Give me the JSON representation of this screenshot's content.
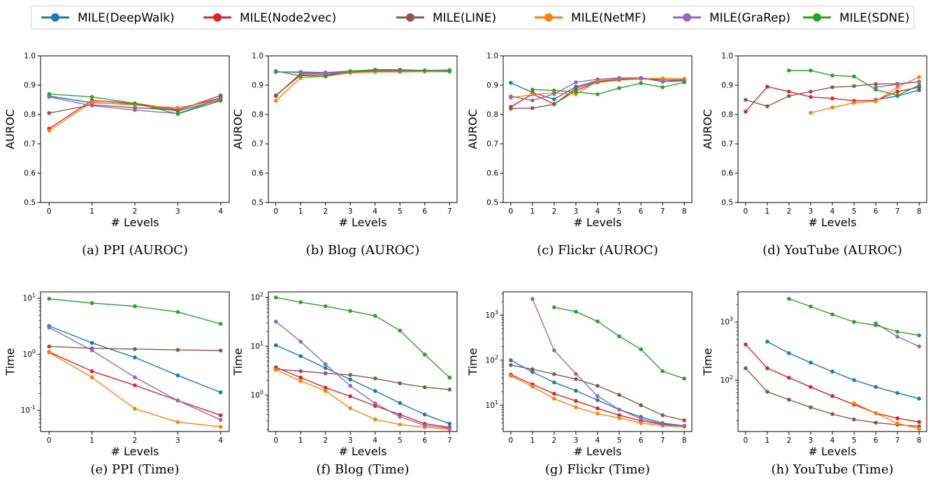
{
  "legend": {
    "entries": [
      {
        "name": "MILE(DeepWalk)",
        "color": "#1f77b4"
      },
      {
        "name": "MILE(Node2vec)",
        "color": "#d62728"
      },
      {
        "name": "MILE(LINE)",
        "color": "#8c564b"
      },
      {
        "name": "MILE(NetMF)",
        "color": "#ff7f0e"
      },
      {
        "name": "MILE(GraRep)",
        "color": "#9467bd"
      },
      {
        "name": "MILE(SDNE)",
        "color": "#2ca02c"
      }
    ]
  },
  "chart_data": [
    {
      "id": "a",
      "type": "line",
      "caption": "(a) PPI (AUROC)",
      "xlabel": "# Levels",
      "ylabel": "AUROC",
      "x": [
        0,
        1,
        2,
        3,
        4
      ],
      "xlim": [
        -0.2,
        4.2
      ],
      "ylim": [
        0.5,
        1.0
      ],
      "yscale": "linear",
      "yticks": [
        0.5,
        0.6,
        0.7,
        0.8,
        0.9,
        1.0
      ],
      "ytick_labels": [
        "0.5",
        "0.6",
        "0.7",
        "0.8",
        "0.9",
        "1.0"
      ],
      "grid": false,
      "series": [
        {
          "name": "MILE(DeepWalk)",
          "values": [
            0.863,
            0.84,
            0.835,
            0.812,
            0.85
          ]
        },
        {
          "name": "MILE(Node2vec)",
          "values": [
            0.752,
            0.848,
            0.838,
            0.817,
            0.857
          ]
        },
        {
          "name": "MILE(LINE)",
          "values": [
            0.805,
            0.833,
            0.823,
            0.815,
            0.865
          ]
        },
        {
          "name": "MILE(NetMF)",
          "values": [
            0.745,
            0.842,
            0.832,
            0.823,
            0.85
          ]
        },
        {
          "name": "MILE(GraRep)",
          "values": [
            0.86,
            0.83,
            0.815,
            0.803,
            0.853
          ]
        },
        {
          "name": "MILE(SDNE)",
          "values": [
            0.87,
            0.86,
            0.838,
            0.802,
            0.847
          ]
        }
      ]
    },
    {
      "id": "b",
      "type": "line",
      "caption": "(b) Blog (AUROC)",
      "xlabel": "# Levels",
      "ylabel": "AUROC",
      "x": [
        0,
        1,
        2,
        3,
        4,
        5,
        6,
        7
      ],
      "xlim": [
        -0.3,
        7.3
      ],
      "ylim": [
        0.5,
        1.0
      ],
      "yscale": "linear",
      "yticks": [
        0.5,
        0.6,
        0.7,
        0.8,
        0.9,
        1.0
      ],
      "ytick_labels": [
        "0.5",
        "0.6",
        "0.7",
        "0.8",
        "0.9",
        "1.0"
      ],
      "grid": false,
      "series": [
        {
          "name": "MILE(DeepWalk)",
          "values": [
            0.945,
            0.945,
            0.943,
            0.948,
            0.952,
            0.952,
            0.95,
            0.95
          ]
        },
        {
          "name": "MILE(Node2vec)",
          "values": [
            0.865,
            0.935,
            0.935,
            0.945,
            0.948,
            0.948,
            0.948,
            0.948
          ]
        },
        {
          "name": "MILE(LINE)",
          "values": [
            0.863,
            0.94,
            0.94,
            0.945,
            0.948,
            0.948,
            0.948,
            0.948
          ]
        },
        {
          "name": "MILE(NetMF)",
          "values": [
            0.847,
            0.925,
            0.93,
            0.942,
            0.945,
            0.945,
            0.946,
            0.946
          ]
        },
        {
          "name": "MILE(GraRep)",
          "values": [
            0.945,
            0.943,
            0.941,
            0.947,
            0.952,
            0.95,
            0.95,
            0.952
          ]
        },
        {
          "name": "MILE(SDNE)",
          "values": [
            0.948,
            0.932,
            0.93,
            0.948,
            0.953,
            0.953,
            0.95,
            0.948
          ]
        }
      ]
    },
    {
      "id": "c",
      "type": "line",
      "caption": "(c) Flickr (AUROC)",
      "xlabel": "# Levels",
      "ylabel": "AUROC",
      "x": [
        0,
        1,
        2,
        3,
        4,
        5,
        6,
        7,
        8
      ],
      "xlim": [
        -0.35,
        8.35
      ],
      "ylim": [
        0.5,
        1.0
      ],
      "yscale": "linear",
      "yticks": [
        0.5,
        0.6,
        0.7,
        0.8,
        0.9,
        1.0
      ],
      "ytick_labels": [
        "0.5",
        "0.6",
        "0.7",
        "0.8",
        "0.9",
        "1.0"
      ],
      "grid": false,
      "series": [
        {
          "name": "MILE(DeepWalk)",
          "values": [
            0.908,
            0.875,
            0.852,
            0.895,
            0.915,
            0.922,
            0.925,
            0.912,
            0.915
          ]
        },
        {
          "name": "MILE(Node2vec)",
          "values": [
            0.826,
            0.87,
            0.836,
            0.882,
            0.91,
            0.918,
            0.922,
            0.918,
            0.918
          ]
        },
        {
          "name": "MILE(LINE)",
          "values": [
            0.82,
            0.822,
            0.835,
            0.89,
            0.912,
            0.92,
            0.925,
            0.918,
            0.915
          ]
        },
        {
          "name": "MILE(NetMF)",
          "values": [
            0.857,
            0.868,
            0.874,
            0.869,
            0.914,
            0.922,
            0.923,
            0.923,
            0.922
          ]
        },
        {
          "name": "MILE(GraRep)",
          "values": [
            0.862,
            0.848,
            0.87,
            0.91,
            0.92,
            0.925,
            0.925,
            0.912,
            0.915
          ]
        },
        {
          "name": "MILE(SDNE)",
          "values": [
            null,
            0.885,
            0.882,
            0.877,
            0.869,
            0.89,
            0.907,
            0.893,
            0.91
          ]
        }
      ]
    },
    {
      "id": "d",
      "type": "line",
      "caption": "(d) YouTube (AUROC)",
      "xlabel": "# Levels",
      "ylabel": "AUROC",
      "x": [
        0,
        1,
        2,
        3,
        4,
        5,
        6,
        7,
        8
      ],
      "xlim": [
        -0.35,
        8.35
      ],
      "ylim": [
        0.5,
        1.0
      ],
      "yscale": "linear",
      "yticks": [
        0.5,
        0.6,
        0.7,
        0.8,
        0.9,
        1.0
      ],
      "ytick_labels": [
        "0.5",
        "0.6",
        "0.7",
        "0.8",
        "0.9",
        "1.0"
      ],
      "grid": false,
      "series": [
        {
          "name": "MILE(DeepWalk)",
          "values": [
            null,
            null,
            null,
            null,
            null,
            null,
            0.85,
            0.863,
            0.883
          ]
        },
        {
          "name": "MILE(Node2vec)",
          "values": [
            0.81,
            0.895,
            0.878,
            0.86,
            0.855,
            0.847,
            0.848,
            0.878,
            0.893
          ]
        },
        {
          "name": "MILE(LINE)",
          "values": [
            0.85,
            0.828,
            0.863,
            0.878,
            0.893,
            0.897,
            0.904,
            0.905,
            0.912
          ]
        },
        {
          "name": "MILE(NetMF)",
          "values": [
            null,
            null,
            null,
            0.806,
            0.824,
            0.84,
            0.845,
            0.893,
            0.928
          ]
        },
        {
          "name": "MILE(GraRep)",
          "values": [
            null,
            null,
            null,
            null,
            null,
            null,
            0.893,
            0.903,
            0.912
          ]
        },
        {
          "name": "MILE(SDNE)",
          "values": [
            null,
            null,
            0.95,
            0.95,
            0.933,
            0.93,
            0.885,
            0.865,
            0.9
          ]
        }
      ]
    },
    {
      "id": "e",
      "type": "line",
      "caption": "(e) PPI (Time)",
      "xlabel": "# Levels",
      "ylabel": "Time",
      "x": [
        0,
        1,
        2,
        3,
        4
      ],
      "xlim": [
        -0.2,
        4.2
      ],
      "ylim": [
        0.042,
        13
      ],
      "yscale": "log",
      "yticks": [
        0.1,
        1,
        10
      ],
      "ytick_labels": [
        "10^-1",
        "10^0",
        "10^1"
      ],
      "grid": false,
      "series": [
        {
          "name": "MILE(DeepWalk)",
          "values": [
            3.2,
            1.6,
            0.88,
            0.42,
            0.21
          ]
        },
        {
          "name": "MILE(Node2vec)",
          "values": [
            1.1,
            0.5,
            0.28,
            0.15,
            0.082
          ]
        },
        {
          "name": "MILE(LINE)",
          "values": [
            1.38,
            1.28,
            1.24,
            1.2,
            1.17
          ]
        },
        {
          "name": "MILE(NetMF)",
          "values": [
            1.08,
            0.39,
            0.107,
            0.062,
            0.051
          ]
        },
        {
          "name": "MILE(GraRep)",
          "values": [
            3.0,
            1.18,
            0.39,
            0.15,
            0.068
          ]
        },
        {
          "name": "MILE(SDNE)",
          "values": [
            9.8,
            8.2,
            7.2,
            5.7,
            3.5
          ]
        }
      ]
    },
    {
      "id": "f",
      "type": "line",
      "caption": "(f) Blog (Time)",
      "xlabel": "# Levels",
      "ylabel": "Time",
      "x": [
        0,
        1,
        2,
        3,
        4,
        5,
        6,
        7
      ],
      "xlim": [
        -0.3,
        7.3
      ],
      "ylim": [
        0.18,
        130
      ],
      "yscale": "log",
      "yticks": [
        1,
        10,
        100
      ],
      "ytick_labels": [
        "10^0",
        "10^1",
        "10^2"
      ],
      "grid": false,
      "series": [
        {
          "name": "MILE(DeepWalk)",
          "values": [
            10.5,
            6.3,
            3.6,
            2.1,
            1.22,
            0.69,
            0.4,
            0.26
          ]
        },
        {
          "name": "MILE(Node2vec)",
          "values": [
            3.7,
            2.3,
            1.42,
            0.95,
            0.6,
            0.4,
            0.26,
            0.22
          ]
        },
        {
          "name": "MILE(LINE)",
          "values": [
            3.4,
            3.1,
            2.8,
            2.6,
            2.2,
            1.75,
            1.45,
            1.3
          ]
        },
        {
          "name": "MILE(NetMF)",
          "values": [
            3.3,
            1.95,
            1.22,
            0.54,
            0.32,
            0.25,
            0.22,
            0.2
          ]
        },
        {
          "name": "MILE(GraRep)",
          "values": [
            32,
            12.5,
            4.3,
            1.55,
            0.68,
            0.36,
            0.24,
            0.21
          ]
        },
        {
          "name": "MILE(SDNE)",
          "values": [
            100,
            80,
            66,
            53,
            42,
            21,
            6.8,
            2.3
          ]
        }
      ]
    },
    {
      "id": "g",
      "type": "line",
      "caption": "(g) Flickr (Time)",
      "xlabel": "# Levels",
      "ylabel": "Time",
      "x": [
        0,
        1,
        2,
        3,
        4,
        5,
        6,
        7,
        8
      ],
      "xlim": [
        -0.35,
        8.35
      ],
      "ylim": [
        2.6,
        3300
      ],
      "yscale": "log",
      "yticks": [
        10,
        100,
        1000
      ],
      "ytick_labels": [
        "10^1",
        "10^2",
        "10^3"
      ],
      "grid": false,
      "series": [
        {
          "name": "MILE(DeepWalk)",
          "values": [
            100,
            55,
            32,
            21,
            13,
            8,
            5.5,
            4,
            3.5
          ]
        },
        {
          "name": "MILE(Node2vec)",
          "values": [
            48,
            29,
            18,
            12.5,
            8.5,
            6,
            4.5,
            3.7,
            3.4
          ]
        },
        {
          "name": "MILE(LINE)",
          "values": [
            78,
            63,
            49,
            38,
            27,
            17,
            10,
            6,
            4.6
          ]
        },
        {
          "name": "MILE(NetMF)",
          "values": [
            45,
            26,
            14,
            9,
            6.5,
            5.2,
            4,
            3.5,
            3.3
          ]
        },
        {
          "name": "MILE(GraRep)",
          "values": [
            null,
            2300,
            165,
            50,
            16,
            8,
            5,
            3.8,
            3.5
          ]
        },
        {
          "name": "MILE(SDNE)",
          "values": [
            null,
            null,
            1500,
            1200,
            730,
            340,
            175,
            57,
            39
          ]
        }
      ]
    },
    {
      "id": "h",
      "type": "line",
      "caption": "(h) YouTube (Time)",
      "xlabel": "# Levels",
      "ylabel": "Time",
      "x": [
        0,
        1,
        2,
        3,
        4,
        5,
        6,
        7,
        8
      ],
      "xlim": [
        -0.35,
        8.35
      ],
      "ylim": [
        13,
        3300
      ],
      "yscale": "log",
      "yticks": [
        100,
        1000
      ],
      "ytick_labels": [
        "10^2",
        "10^3"
      ],
      "grid": false,
      "series": [
        {
          "name": "MILE(DeepWalk)",
          "values": [
            null,
            460,
            290,
            200,
            140,
            100,
            76,
            60,
            48
          ]
        },
        {
          "name": "MILE(Node2vec)",
          "values": [
            410,
            160,
            110,
            76,
            53,
            38,
            27,
            22,
            19
          ]
        },
        {
          "name": "MILE(LINE)",
          "values": [
            160,
            63,
            46,
            34,
            26,
            21,
            18.5,
            17,
            16
          ]
        },
        {
          "name": "MILE(NetMF)",
          "values": [
            null,
            null,
            null,
            null,
            null,
            40,
            27,
            18,
            14.5
          ]
        },
        {
          "name": "MILE(GraRep)",
          "values": [
            null,
            null,
            null,
            null,
            null,
            null,
            950,
            560,
            380
          ]
        },
        {
          "name": "MILE(SDNE)",
          "values": [
            null,
            null,
            2500,
            1850,
            1350,
            1000,
            880,
            680,
            590
          ]
        }
      ]
    }
  ]
}
